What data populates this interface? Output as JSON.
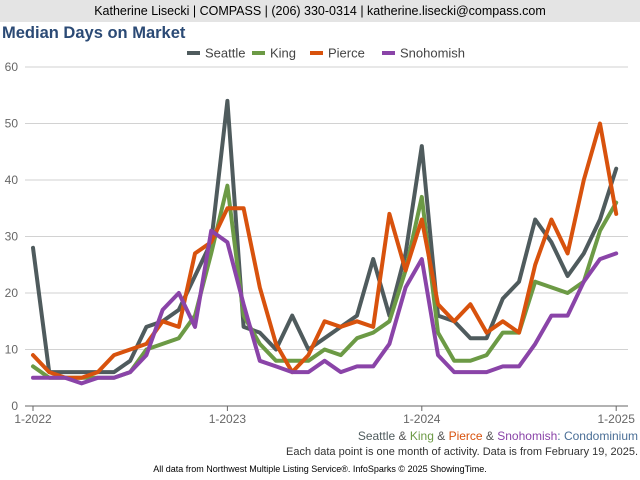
{
  "header": {
    "contact": "Katherine Lisecki | COMPASS | (206) 330-0314 | katherine.lisecki@compass.com"
  },
  "chart_data": {
    "type": "line",
    "title": "Median Days on Market",
    "xlabel": "",
    "ylabel": "",
    "ylim": [
      0,
      60
    ],
    "yticks": [
      0,
      10,
      20,
      30,
      40,
      50,
      60
    ],
    "xticks": [
      {
        "index": 0,
        "label": "1-2022"
      },
      {
        "index": 12,
        "label": "1-2023"
      },
      {
        "index": 24,
        "label": "1-2024"
      },
      {
        "index": 36,
        "label": "1-2025"
      }
    ],
    "grid": true,
    "legend_position": "top-center",
    "subtitle_parts": [
      {
        "text": "Seattle",
        "color": "#4f5b5d"
      },
      {
        "text": " & ",
        "color": "#555555"
      },
      {
        "text": "King",
        "color": "#6c9a45"
      },
      {
        "text": " & ",
        "color": "#555555"
      },
      {
        "text": "Pierce",
        "color": "#d8520d"
      },
      {
        "text": " & ",
        "color": "#555555"
      },
      {
        "text": "Snohomish",
        "color": "#8a44a8"
      },
      {
        "text": ": Condominium",
        "color": "#4a6e96"
      }
    ],
    "series": [
      {
        "name": "Seattle",
        "color": "#4f5b5d",
        "values": [
          28,
          6,
          6,
          6,
          6,
          6,
          8,
          14,
          15,
          17,
          23,
          29,
          54,
          14,
          13,
          10,
          16,
          10,
          12,
          14,
          16,
          26,
          16,
          27,
          46,
          16,
          15,
          12,
          12,
          19,
          22,
          33,
          29,
          23,
          27,
          33,
          42
        ]
      },
      {
        "name": "King",
        "color": "#6c9a45",
        "values": [
          7,
          5,
          5,
          5,
          5,
          5,
          6,
          10,
          11,
          12,
          16,
          27,
          39,
          16,
          11,
          8,
          8,
          8,
          10,
          9,
          12,
          13,
          15,
          24,
          37,
          13,
          8,
          8,
          9,
          13,
          13,
          22,
          21,
          20,
          22,
          31,
          36
        ]
      },
      {
        "name": "Pierce",
        "color": "#d8520d",
        "values": [
          9,
          6,
          5,
          5,
          6,
          9,
          10,
          11,
          15,
          14,
          27,
          29,
          35,
          35,
          21,
          11,
          6,
          9,
          15,
          14,
          15,
          14,
          34,
          24,
          33,
          18,
          15,
          18,
          13,
          15,
          13,
          25,
          33,
          27,
          40,
          50,
          34
        ]
      },
      {
        "name": "Snohomish",
        "color": "#8a44a8",
        "values": [
          5,
          5,
          5,
          4,
          5,
          5,
          6,
          9,
          17,
          20,
          14,
          31,
          29,
          18,
          8,
          7,
          6,
          6,
          8,
          6,
          7,
          7,
          11,
          21,
          26,
          9,
          6,
          6,
          6,
          7,
          7,
          11,
          16,
          16,
          22,
          26,
          27
        ]
      }
    ]
  },
  "notes": {
    "data_point": "Each data point is one month of activity. Data is from February 19, 2025.",
    "footer": "All data from Northwest Multiple Listing Service®. InfoSparks © 2025 ShowingTime."
  }
}
